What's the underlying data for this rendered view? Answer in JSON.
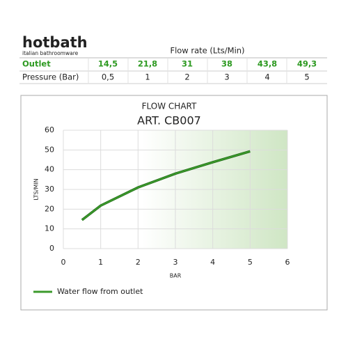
{
  "logo": {
    "name": "hotbath",
    "tagline": "italian bathroomware"
  },
  "table": {
    "header": "Flow rate (Lts/Min)",
    "rows": [
      [
        "Outlet",
        "14,5",
        "21,8",
        "31",
        "38",
        "43,8",
        "49,3"
      ],
      [
        "Pressure (Bar)",
        "0,5",
        "1",
        "2",
        "3",
        "4",
        "5"
      ]
    ]
  },
  "chart_data": {
    "type": "line",
    "title": "FLOW CHART",
    "subtitle": "ART. CB007",
    "x_label": "BAR",
    "y_label": "LTS/MIN",
    "x": [
      0.5,
      1,
      2,
      3,
      4,
      5
    ],
    "series": [
      {
        "name": "Water flow from outlet",
        "color": "#3c9a2c",
        "values": [
          14.5,
          21.8,
          31,
          38,
          43.8,
          49.3
        ]
      }
    ],
    "xlim": [
      0,
      6
    ],
    "ylim": [
      0,
      60
    ],
    "xticks": [
      0,
      1,
      2,
      3,
      4,
      5,
      6
    ],
    "yticks": [
      0,
      10,
      20,
      30,
      40,
      50,
      60
    ],
    "grid": true
  }
}
